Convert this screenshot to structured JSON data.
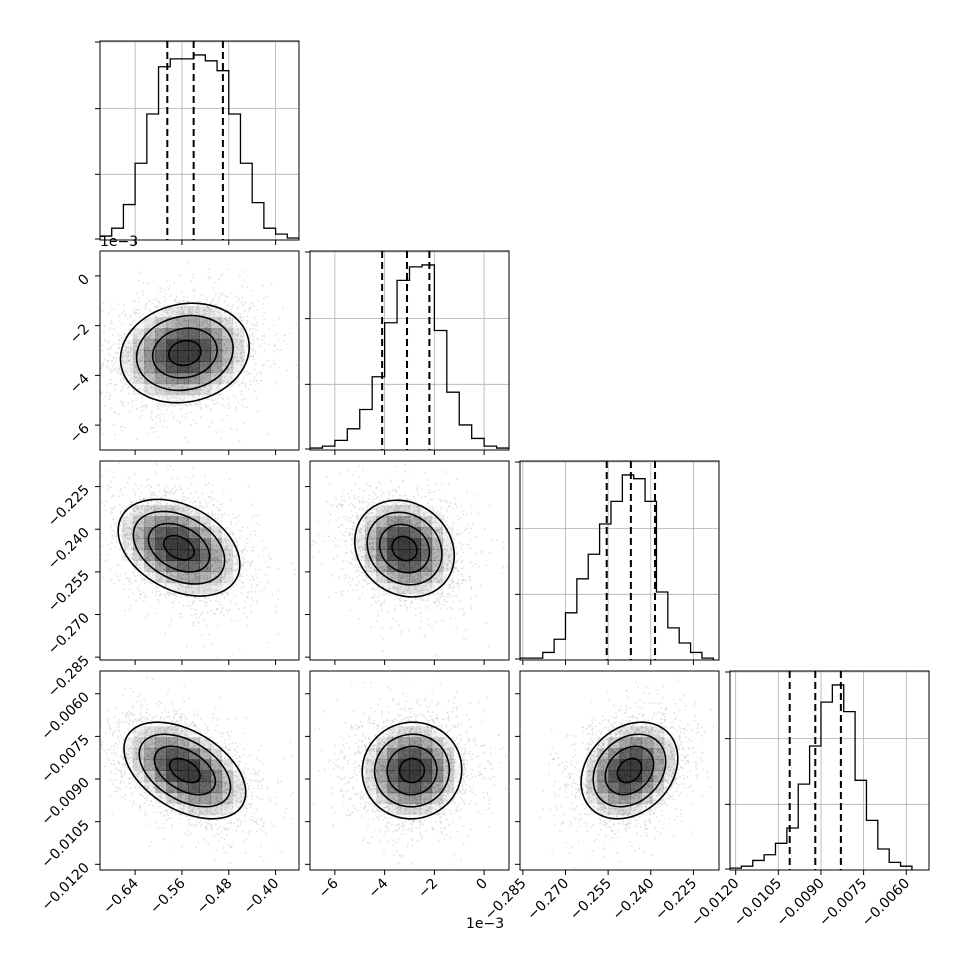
{
  "figure": {
    "type": "corner-plot",
    "offset_labels": {
      "y_row1": "1e−3",
      "x_col1": "1e−3"
    }
  },
  "colors": {
    "axis": "#000000",
    "grid": "#b0b0b0",
    "points": "#bfbfbf",
    "density": "#000000"
  },
  "chart_data": [
    {
      "type": "histogram",
      "row": 0,
      "col": 0,
      "xlim": [
        -0.7,
        -0.36
      ],
      "bins": [
        -0.7,
        -0.68,
        -0.66,
        -0.64,
        -0.62,
        -0.6,
        -0.58,
        -0.56,
        -0.54,
        -0.52,
        -0.5,
        -0.48,
        -0.46,
        -0.44,
        -0.42,
        -0.4,
        -0.38,
        -0.36
      ],
      "counts": [
        0.02,
        0.06,
        0.18,
        0.39,
        0.64,
        0.88,
        0.92,
        0.92,
        0.94,
        0.91,
        0.86,
        0.64,
        0.39,
        0.19,
        0.06,
        0.03,
        0.01
      ],
      "quantiles": [
        -0.585,
        -0.54,
        -0.49
      ],
      "x_ticks": [
        -0.64,
        -0.56,
        -0.48,
        -0.4
      ],
      "x_tick_labels": [
        "−0.64",
        "−0.56",
        "−0.48",
        "−0.40"
      ]
    },
    {
      "type": "scatter-density",
      "row": 1,
      "col": 0,
      "xlim": [
        -0.7,
        -0.36
      ],
      "ylim": [
        -7.0,
        1.0
      ],
      "center": [
        -0.555,
        -3.1
      ],
      "spread": [
        0.055,
        1.0
      ],
      "corr": 0.12,
      "x_ticks": [
        -0.64,
        -0.56,
        -0.48,
        -0.4
      ],
      "x_tick_labels": [
        "−0.64",
        "−0.56",
        "−0.48",
        "−0.40"
      ],
      "y_ticks": [
        0,
        -2,
        -4,
        -6
      ],
      "y_tick_labels": [
        "0",
        "−2",
        "−4",
        "−6"
      ]
    },
    {
      "type": "histogram",
      "row": 1,
      "col": 1,
      "xlim": [
        -7.0,
        1.0
      ],
      "bins": [
        -7.0,
        -6.5,
        -6.0,
        -5.5,
        -5.0,
        -4.5,
        -4.0,
        -3.5,
        -3.0,
        -2.5,
        -2.0,
        -1.5,
        -1.0,
        -0.5,
        0.0,
        0.5,
        1.0
      ],
      "counts": [
        0.01,
        0.02,
        0.05,
        0.11,
        0.21,
        0.38,
        0.66,
        0.88,
        0.95,
        0.96,
        0.62,
        0.3,
        0.13,
        0.06,
        0.02,
        0.01
      ],
      "quantiles": [
        -4.1,
        -3.1,
        -2.2
      ],
      "x_ticks": [
        -6,
        -4,
        -2,
        0
      ],
      "x_tick_labels": [
        "−6",
        "−4",
        "−2",
        "0"
      ]
    },
    {
      "type": "scatter-density",
      "row": 2,
      "col": 0,
      "xlim": [
        -0.7,
        -0.36
      ],
      "ylim": [
        -0.286,
        -0.216
      ],
      "center": [
        -0.565,
        -0.2465
      ],
      "spread": [
        0.052,
        0.0085
      ],
      "corr": -0.35,
      "x_ticks": [
        -0.64,
        -0.56,
        -0.48,
        -0.4
      ],
      "x_tick_labels": [
        "−0.64",
        "−0.56",
        "−0.48",
        "−0.40"
      ],
      "y_ticks": [
        -0.225,
        -0.24,
        -0.255,
        -0.27,
        -0.285
      ],
      "y_tick_labels": [
        "−0.225",
        "−0.240",
        "−0.255",
        "−0.270",
        "−0.285"
      ]
    },
    {
      "type": "scatter-density",
      "row": 2,
      "col": 1,
      "xlim": [
        -7.0,
        1.0
      ],
      "ylim": [
        -0.286,
        -0.216
      ],
      "center": [
        -3.2,
        -0.2468
      ],
      "spread": [
        1.0,
        0.0085
      ],
      "corr": -0.15,
      "x_ticks": [
        -6,
        -4,
        -2,
        0
      ],
      "x_tick_labels": [
        "−6",
        "−4",
        "−2",
        "0"
      ],
      "y_ticks": [
        -0.225,
        -0.24,
        -0.255,
        -0.27,
        -0.285
      ],
      "y_tick_labels": [
        "−0.225",
        "−0.240",
        "−0.255",
        "−0.270",
        "−0.285"
      ]
    },
    {
      "type": "histogram",
      "row": 2,
      "col": 2,
      "xlim": [
        -0.286,
        -0.216
      ],
      "bins": [
        -0.286,
        -0.282,
        -0.278,
        -0.274,
        -0.27,
        -0.266,
        -0.262,
        -0.258,
        -0.254,
        -0.25,
        -0.246,
        -0.242,
        -0.238,
        -0.234,
        -0.23,
        -0.226,
        -0.222,
        -0.218
      ],
      "counts": [
        0.01,
        0.01,
        0.04,
        0.11,
        0.25,
        0.43,
        0.56,
        0.72,
        0.84,
        0.98,
        0.96,
        0.84,
        0.36,
        0.17,
        0.09,
        0.04,
        0.01
      ],
      "quantiles": [
        -0.2555,
        -0.247,
        -0.2385
      ],
      "x_ticks": [
        -0.285,
        -0.27,
        -0.255,
        -0.24,
        -0.225
      ],
      "x_tick_labels": [
        "−0.285",
        "−0.270",
        "−0.255",
        "−0.240",
        "−0.225"
      ]
    },
    {
      "type": "scatter-density",
      "row": 3,
      "col": 0,
      "xlim": [
        -0.7,
        -0.36
      ],
      "ylim": [
        -0.0122,
        -0.0052
      ],
      "center": [
        -0.555,
        -0.0087
      ],
      "spread": [
        0.052,
        0.00085
      ],
      "corr": -0.45,
      "x_ticks": [
        -0.64,
        -0.56,
        -0.48,
        -0.4
      ],
      "x_tick_labels": [
        "−0.64",
        "−0.56",
        "−0.48",
        "−0.40"
      ],
      "y_ticks": [
        -0.006,
        -0.0075,
        -0.009,
        -0.0105,
        -0.012
      ],
      "y_tick_labels": [
        "−0.0060",
        "−0.0075",
        "−0.0090",
        "−0.0105",
        "−0.0120"
      ]
    },
    {
      "type": "scatter-density",
      "row": 3,
      "col": 1,
      "xlim": [
        -7.0,
        1.0
      ],
      "ylim": [
        -0.0122,
        -0.0052
      ],
      "center": [
        -2.9,
        -0.0087
      ],
      "spread": [
        1.0,
        0.00085
      ],
      "corr": 0.02,
      "x_ticks": [
        -6,
        -4,
        -2,
        0
      ],
      "x_tick_labels": [
        "−6",
        "−4",
        "−2",
        "0"
      ],
      "y_ticks": [
        -0.006,
        -0.0075,
        -0.009,
        -0.0105,
        -0.012
      ],
      "y_tick_labels": [
        "−0.0060",
        "−0.0075",
        "−0.0090",
        "−0.0105",
        "−0.0120"
      ]
    },
    {
      "type": "scatter-density",
      "row": 3,
      "col": 2,
      "xlim": [
        -0.286,
        -0.216
      ],
      "ylim": [
        -0.0122,
        -0.0052
      ],
      "center": [
        -0.2475,
        -0.0087
      ],
      "spread": [
        0.0085,
        0.00085
      ],
      "corr": 0.25,
      "x_ticks": [
        -0.285,
        -0.27,
        -0.255,
        -0.24,
        -0.225
      ],
      "x_tick_labels": [
        "−0.285",
        "−0.270",
        "−0.255",
        "−0.240",
        "−0.225"
      ],
      "y_ticks": [
        -0.006,
        -0.0075,
        -0.009,
        -0.0105,
        -0.012
      ],
      "y_tick_labels": [
        "−0.0060",
        "−0.0075",
        "−0.0090",
        "−0.0105",
        "−0.0120"
      ]
    },
    {
      "type": "histogram",
      "row": 3,
      "col": 3,
      "xlim": [
        -0.0122,
        -0.0052
      ],
      "bins": [
        -0.0122,
        -0.0118,
        -0.0114,
        -0.011,
        -0.0106,
        -0.0102,
        -0.0098,
        -0.0094,
        -0.009,
        -0.0086,
        -0.0082,
        -0.0078,
        -0.0074,
        -0.007,
        -0.0066,
        -0.0062,
        -0.0058
      ],
      "counts": [
        0.01,
        0.02,
        0.05,
        0.08,
        0.14,
        0.22,
        0.45,
        0.65,
        0.88,
        0.97,
        0.83,
        0.47,
        0.26,
        0.11,
        0.04,
        0.02
      ],
      "quantiles": [
        -0.0101,
        -0.0092,
        -0.0083
      ],
      "x_ticks": [
        -0.012,
        -0.0105,
        -0.009,
        -0.0075,
        -0.006
      ],
      "x_tick_labels": [
        "−0.0120",
        "−0.0105",
        "−0.0090",
        "−0.0075",
        "−0.0060"
      ]
    }
  ]
}
